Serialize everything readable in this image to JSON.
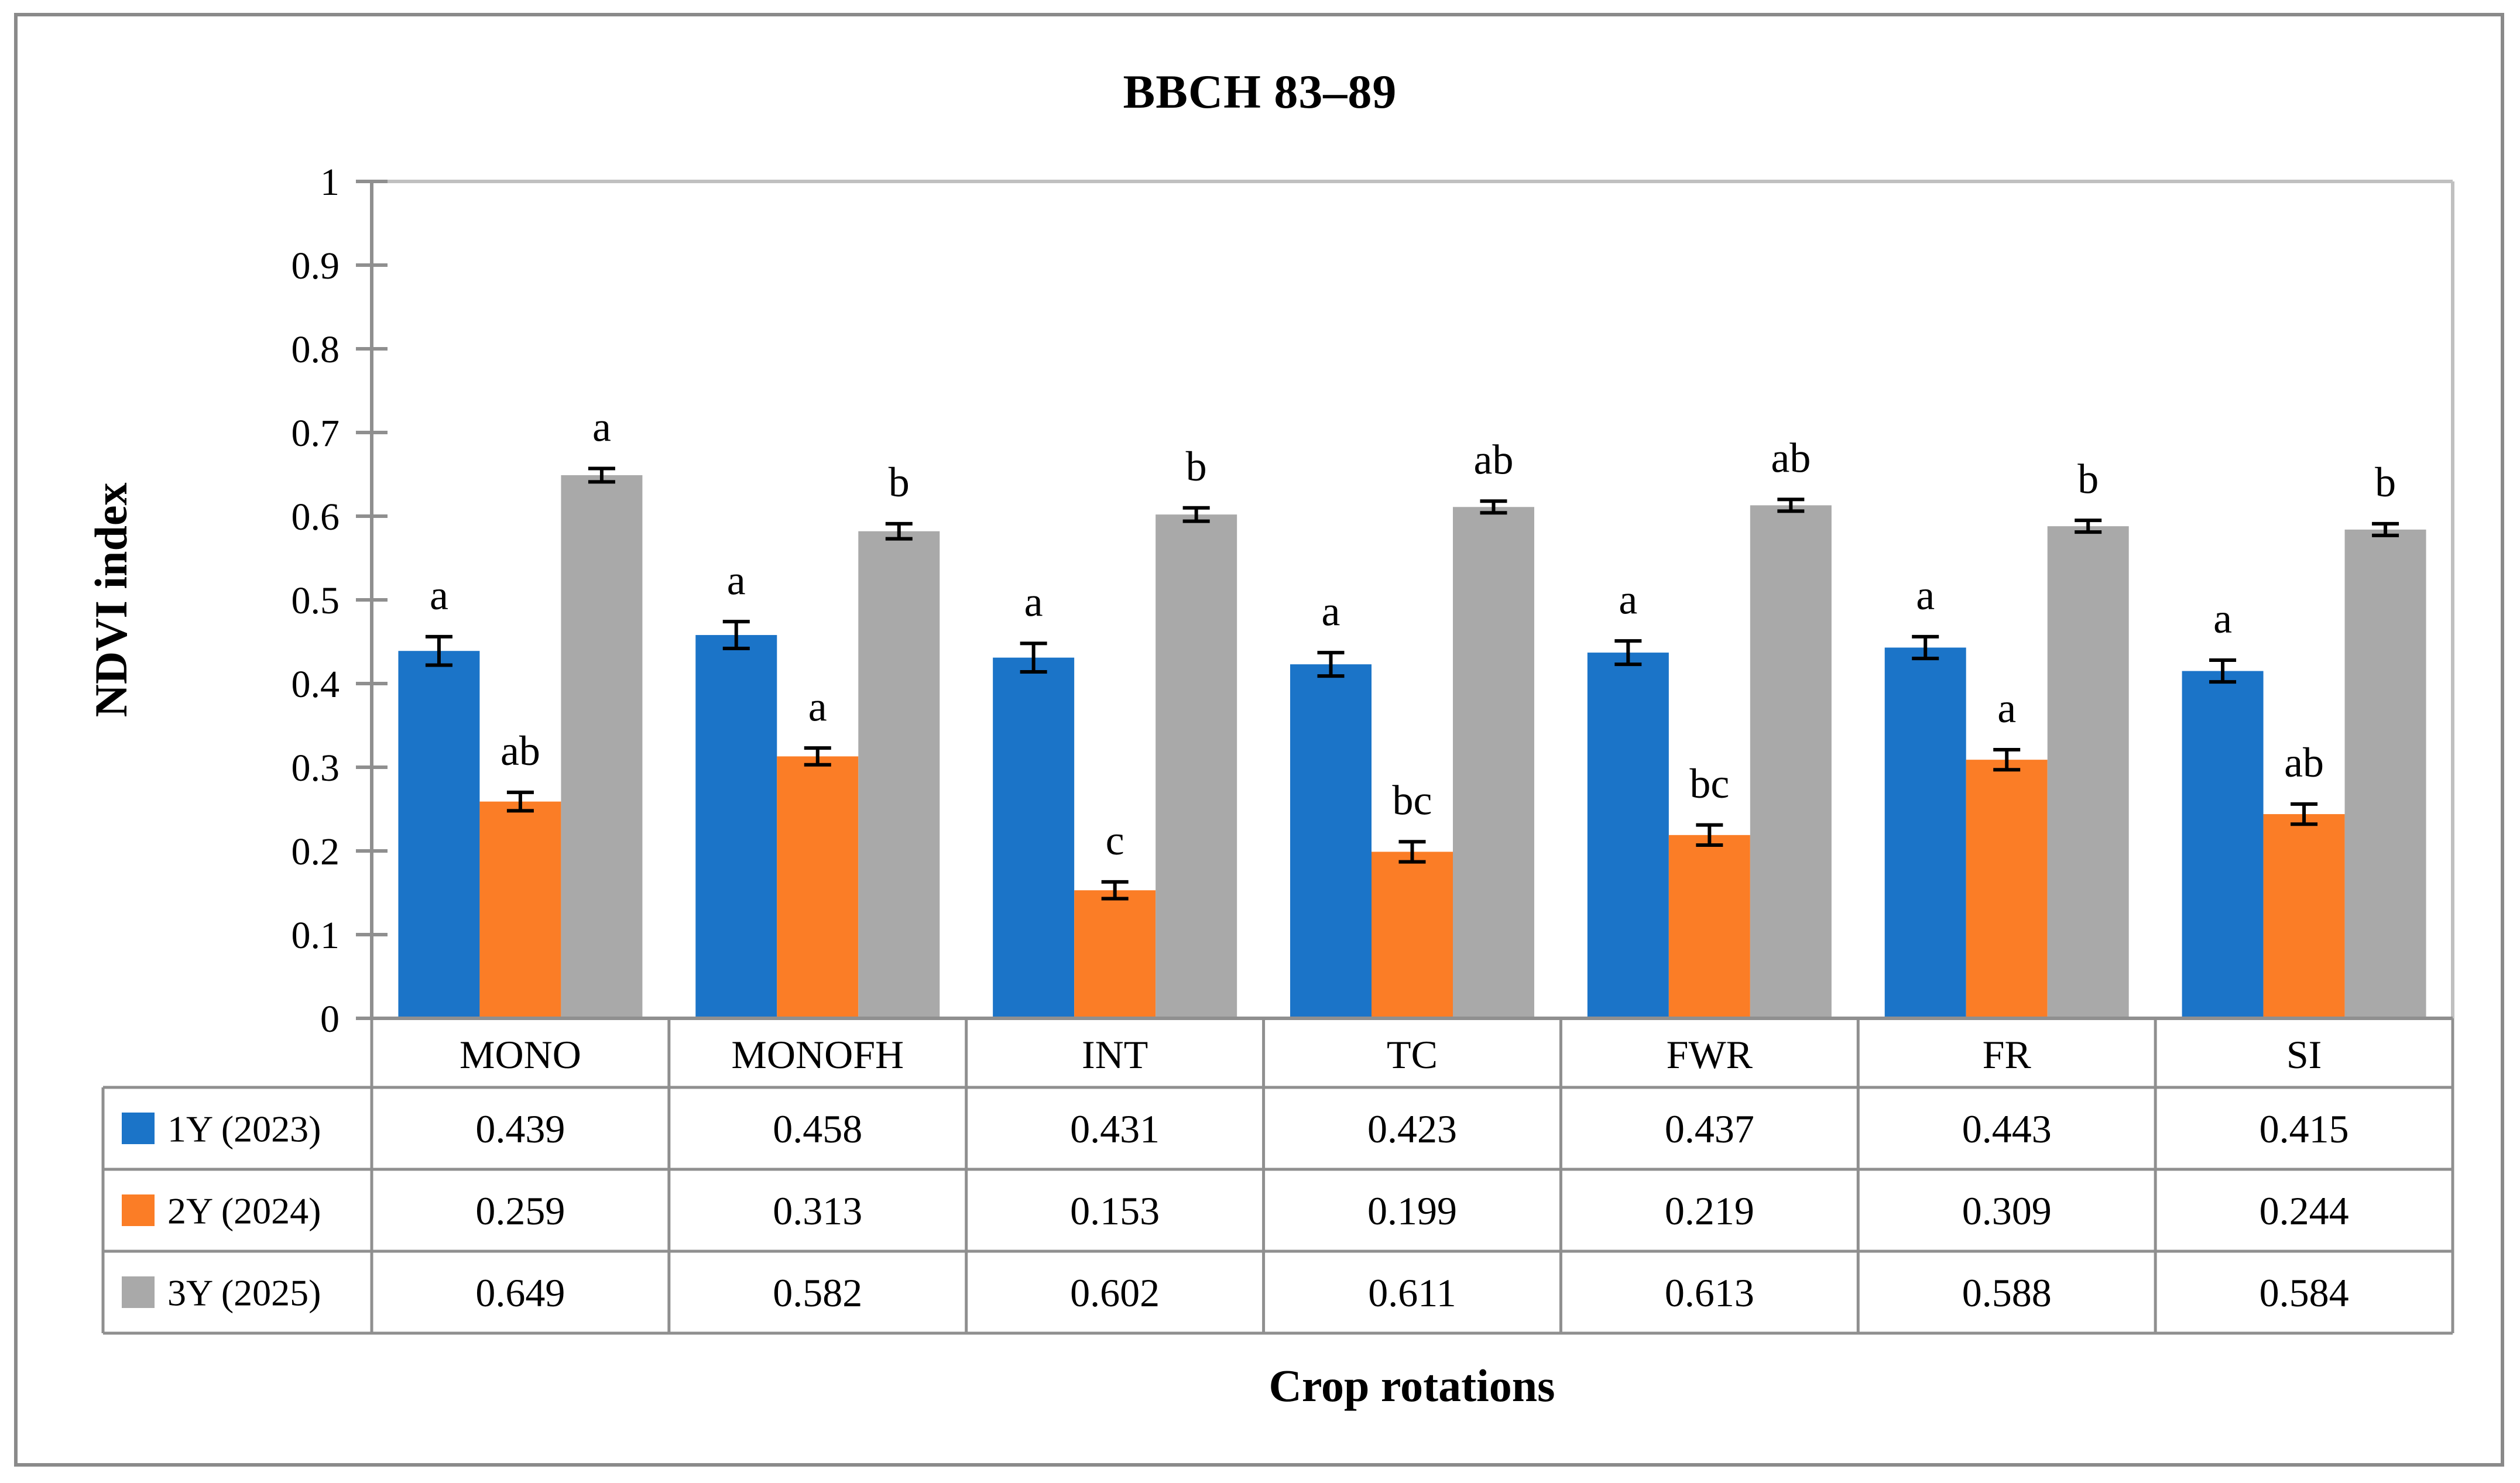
{
  "figure": {
    "kind": "grouped bar chart with data table",
    "outer_border_color": "#8a8a8a",
    "plot_border_color": "#c0c0c0",
    "grid_line_color": "#8f8f8f",
    "error_bar_color": "#000000"
  },
  "chart_data": {
    "type": "bar",
    "title": "BBCH 83–89",
    "xlabel": "Crop rotations",
    "ylabel": "NDVI index",
    "ylim": [
      0,
      1
    ],
    "ytick_step": 0.1,
    "ytick_labels": [
      "0",
      "0.1",
      "0.2",
      "0.3",
      "0.4",
      "0.5",
      "0.6",
      "0.7",
      "0.8",
      "0.9",
      "1"
    ],
    "grid": false,
    "legend_position": "data-table-left-column",
    "data_table_shown": true,
    "categories": [
      "MONO",
      "MONOFH",
      "INT",
      "TC",
      "FWR",
      "FR",
      "SI"
    ],
    "series": [
      {
        "name": "1Y (2023)",
        "color": "#1b74c8",
        "values": [
          0.439,
          0.458,
          0.431,
          0.423,
          0.437,
          0.443,
          0.415
        ],
        "errors": [
          0.017,
          0.016,
          0.017,
          0.014,
          0.014,
          0.013,
          0.013
        ],
        "letters": [
          "a",
          "a",
          "a",
          "a",
          "a",
          "a",
          "a"
        ]
      },
      {
        "name": "2Y (2024)",
        "color": "#fb7d26",
        "values": [
          0.259,
          0.313,
          0.153,
          0.199,
          0.219,
          0.309,
          0.244
        ],
        "errors": [
          0.011,
          0.01,
          0.01,
          0.012,
          0.012,
          0.012,
          0.012
        ],
        "letters": [
          "ab",
          "a",
          "c",
          "bc",
          "bc",
          "a",
          "ab"
        ]
      },
      {
        "name": "3Y (2025)",
        "color": "#a9a9a9",
        "values": [
          0.649,
          0.582,
          0.602,
          0.611,
          0.613,
          0.588,
          0.584
        ],
        "errors": [
          0.008,
          0.009,
          0.008,
          0.007,
          0.007,
          0.007,
          0.007
        ],
        "letters": [
          "a",
          "b",
          "b",
          "ab",
          "ab",
          "b",
          "b"
        ]
      }
    ]
  }
}
